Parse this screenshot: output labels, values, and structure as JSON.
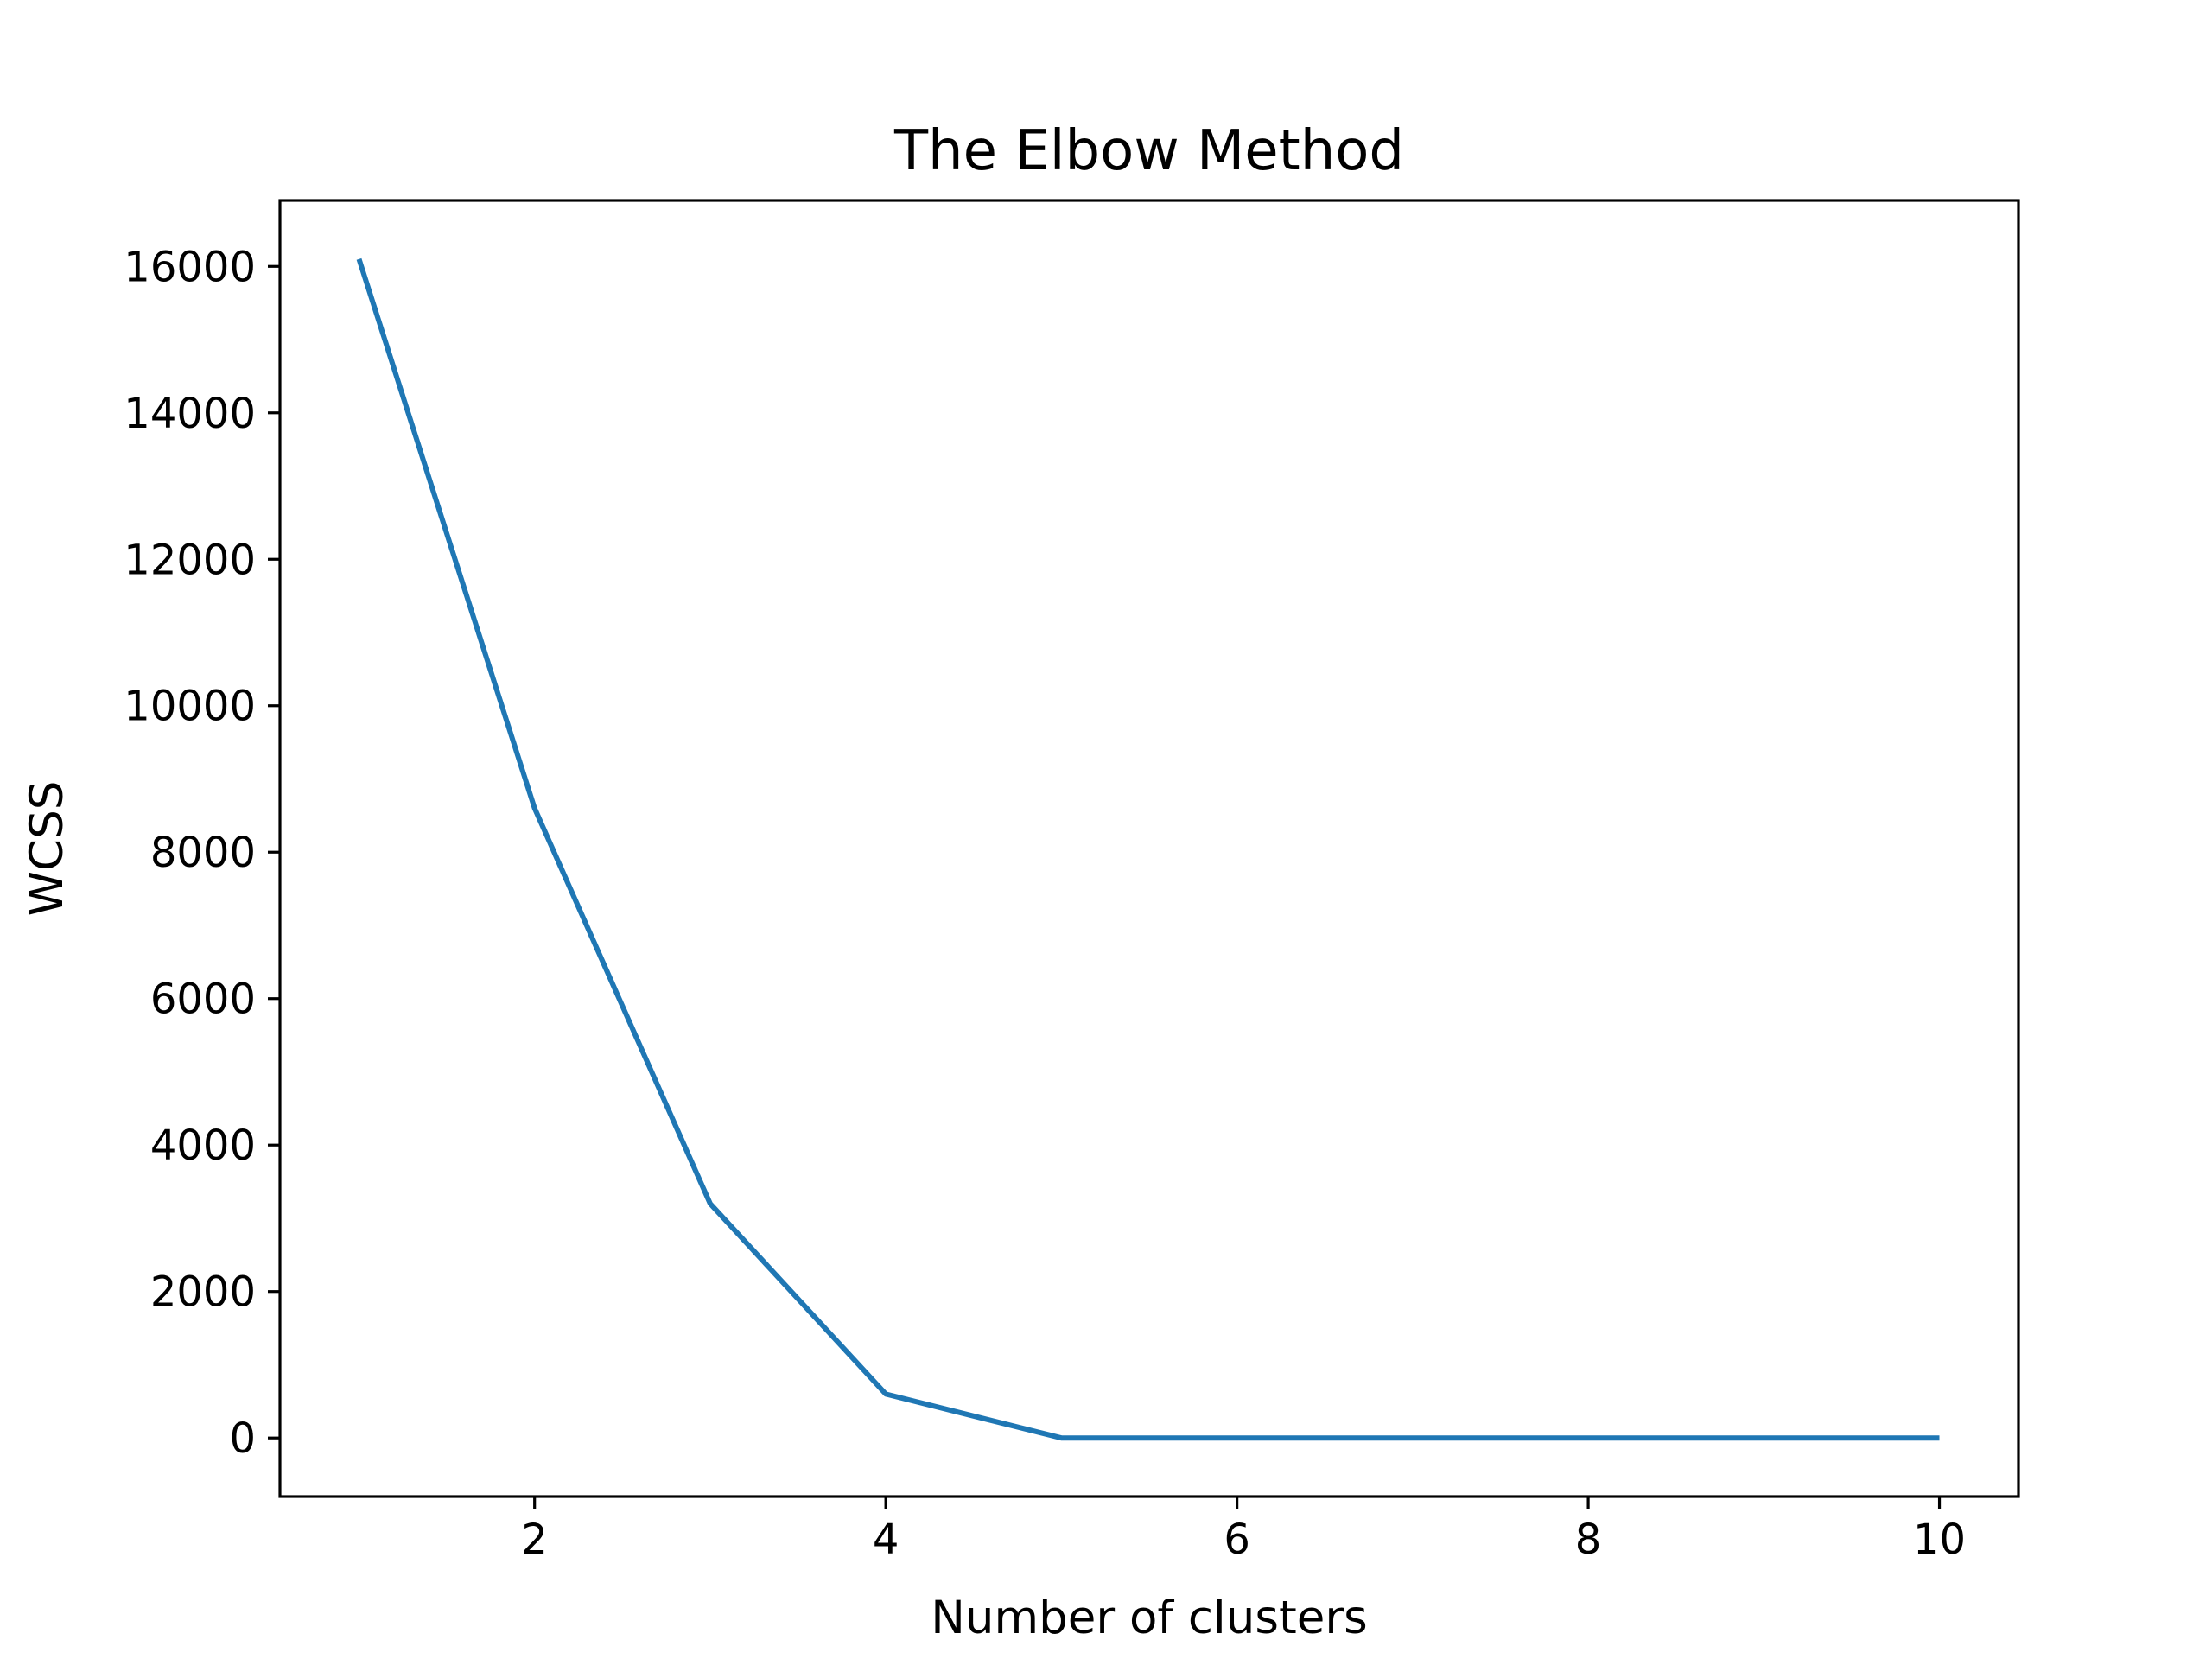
{
  "chart_data": {
    "type": "line",
    "title": "The Elbow Method",
    "xlabel": "Number of clusters",
    "ylabel": "WCSS",
    "x": [
      1,
      2,
      3,
      4,
      5,
      6,
      7,
      8,
      9,
      10
    ],
    "series": [
      {
        "values": [
          16100,
          8600,
          3200,
          600,
          0,
          0,
          0,
          0,
          0,
          0
        ],
        "color": "#1f77b4"
      }
    ],
    "xlim": [
      0.55,
      10.45
    ],
    "ylim": [
      -800,
      16900
    ],
    "xticks": [
      2,
      4,
      6,
      8,
      10
    ],
    "yticks": [
      0,
      2000,
      4000,
      6000,
      8000,
      10000,
      12000,
      14000,
      16000
    ],
    "grid": false,
    "legend": "none"
  }
}
